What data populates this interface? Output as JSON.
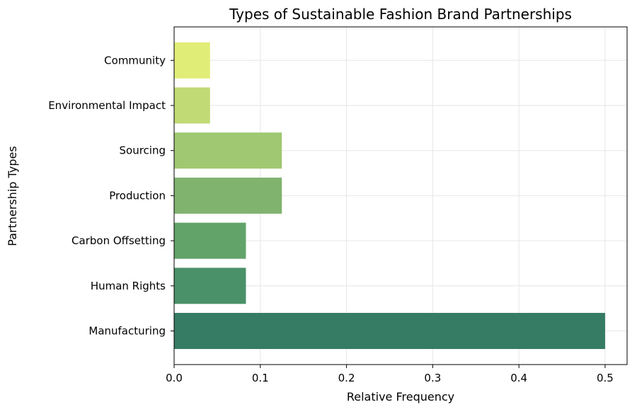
{
  "chart_data": {
    "type": "bar",
    "orientation": "horizontal",
    "title": "Types of Sustainable Fashion Brand Partnerships",
    "xlabel": "Relative Frequency",
    "ylabel": "Partnership Types",
    "categories": [
      "Manufacturing",
      "Human Rights",
      "Carbon Offsetting",
      "Production",
      "Sourcing",
      "Environmental Impact",
      "Community"
    ],
    "values": [
      0.5,
      0.0833,
      0.0833,
      0.125,
      0.125,
      0.0417,
      0.0417
    ],
    "colors": [
      "#367c64",
      "#4a9068",
      "#62a36a",
      "#80b46e",
      "#a0c872",
      "#c1da76",
      "#e0ee77"
    ],
    "xlim": [
      0,
      0.5255
    ],
    "xticks": [
      0.0,
      0.1,
      0.2,
      0.3,
      0.4,
      0.5
    ],
    "xtick_labels": [
      "0.0",
      "0.1",
      "0.2",
      "0.3",
      "0.4",
      "0.5"
    ],
    "grid": true,
    "legend": "none"
  }
}
